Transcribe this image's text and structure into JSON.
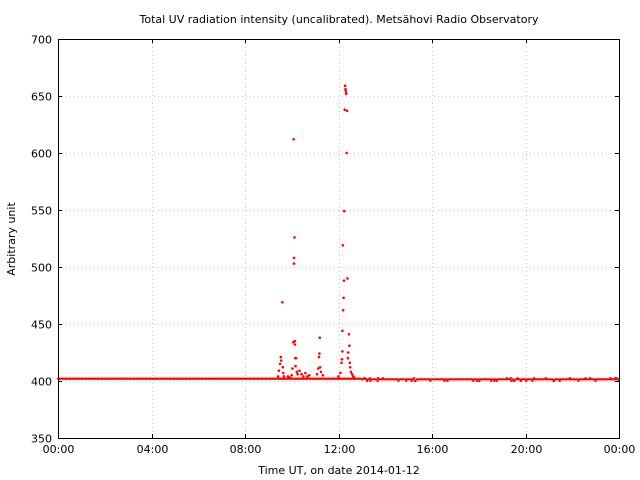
{
  "chart_data": {
    "type": "scatter",
    "title": "Total UV radiation intensity (uncalibrated). Metsähovi Radio Observatory",
    "xlabel": "Time UT, on date 2014-01-12",
    "ylabel": "Arbitrary unit",
    "xlim": [
      "00:00",
      "24:00"
    ],
    "ylim": [
      350,
      700
    ],
    "x_ticks": [
      "00:00",
      "04:00",
      "08:00",
      "12:00",
      "16:00",
      "20:00",
      "00:00"
    ],
    "y_ticks": [
      350,
      400,
      450,
      500,
      550,
      600,
      650,
      700
    ],
    "grid": true,
    "marker_color": "#ff0000",
    "baseline": {
      "x_range": [
        "00:00",
        "24:00"
      ],
      "level_day": 402,
      "level_after_13h": 401.5
    },
    "points": [
      {
        "x": "09:25",
        "y": 404
      },
      {
        "x": "09:27",
        "y": 409
      },
      {
        "x": "09:30",
        "y": 415
      },
      {
        "x": "09:32",
        "y": 421
      },
      {
        "x": "09:33",
        "y": 418
      },
      {
        "x": "09:36",
        "y": 469
      },
      {
        "x": "09:37",
        "y": 412
      },
      {
        "x": "09:38",
        "y": 407
      },
      {
        "x": "09:40",
        "y": 404
      },
      {
        "x": "09:50",
        "y": 404
      },
      {
        "x": "09:55",
        "y": 403
      },
      {
        "x": "10:00",
        "y": 405
      },
      {
        "x": "10:02",
        "y": 411
      },
      {
        "x": "10:04",
        "y": 434
      },
      {
        "x": "10:05",
        "y": 612
      },
      {
        "x": "10:06",
        "y": 508
      },
      {
        "x": "10:06",
        "y": 503
      },
      {
        "x": "10:07",
        "y": 526
      },
      {
        "x": "10:08",
        "y": 435
      },
      {
        "x": "10:08",
        "y": 432
      },
      {
        "x": "10:09",
        "y": 420
      },
      {
        "x": "10:10",
        "y": 413
      },
      {
        "x": "10:11",
        "y": 420
      },
      {
        "x": "10:13",
        "y": 408
      },
      {
        "x": "10:15",
        "y": 406
      },
      {
        "x": "10:20",
        "y": 409
      },
      {
        "x": "10:25",
        "y": 406
      },
      {
        "x": "10:30",
        "y": 404
      },
      {
        "x": "10:35",
        "y": 407
      },
      {
        "x": "10:40",
        "y": 404
      },
      {
        "x": "10:45",
        "y": 405
      },
      {
        "x": "11:05",
        "y": 406
      },
      {
        "x": "11:08",
        "y": 411
      },
      {
        "x": "11:10",
        "y": 421
      },
      {
        "x": "11:11",
        "y": 424
      },
      {
        "x": "11:12",
        "y": 438
      },
      {
        "x": "11:13",
        "y": 412
      },
      {
        "x": "11:15",
        "y": 408
      },
      {
        "x": "11:20",
        "y": 405
      },
      {
        "x": "12:00",
        "y": 404
      },
      {
        "x": "12:05",
        "y": 407
      },
      {
        "x": "12:08",
        "y": 416
      },
      {
        "x": "12:09",
        "y": 419
      },
      {
        "x": "12:10",
        "y": 426
      },
      {
        "x": "12:10",
        "y": 444
      },
      {
        "x": "12:11",
        "y": 519
      },
      {
        "x": "12:12",
        "y": 462
      },
      {
        "x": "12:13",
        "y": 473
      },
      {
        "x": "12:14",
        "y": 488
      },
      {
        "x": "12:15",
        "y": 549
      },
      {
        "x": "12:16",
        "y": 638
      },
      {
        "x": "12:17",
        "y": 659
      },
      {
        "x": "12:18",
        "y": 656
      },
      {
        "x": "12:19",
        "y": 654
      },
      {
        "x": "12:20",
        "y": 652
      },
      {
        "x": "12:21",
        "y": 600
      },
      {
        "x": "12:22",
        "y": 637
      },
      {
        "x": "12:23",
        "y": 490
      },
      {
        "x": "12:24",
        "y": 420
      },
      {
        "x": "12:25",
        "y": 425
      },
      {
        "x": "12:27",
        "y": 441
      },
      {
        "x": "12:28",
        "y": 431
      },
      {
        "x": "12:29",
        "y": 416
      },
      {
        "x": "12:30",
        "y": 412
      },
      {
        "x": "12:32",
        "y": 408
      },
      {
        "x": "12:35",
        "y": 406
      },
      {
        "x": "12:38",
        "y": 404
      },
      {
        "x": "12:40",
        "y": 403
      }
    ]
  }
}
